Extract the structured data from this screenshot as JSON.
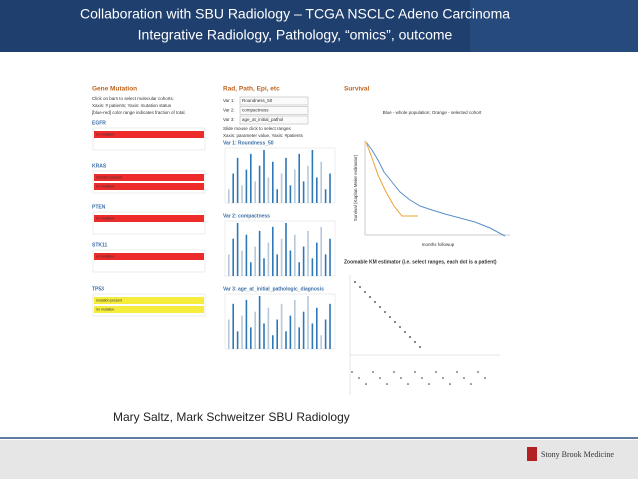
{
  "header": {
    "title_line1": "Collaboration with SBU Radiology – TCGA NSCLC Adeno Carcinoma",
    "title_line2": "Integrative Radiology, Pathology, “omics”, outcome"
  },
  "gene_panel": {
    "title": "Gene Mutation",
    "instructions": [
      "Click on bars to select molecular cohorts.",
      "Xaxis: # patients; Yaxis: mutation status",
      "[blue-red] color range indicates fraction of total."
    ],
    "genes": [
      {
        "name": "EGFR",
        "bars": [
          "no mutation"
        ]
      },
      {
        "name": "KRAS",
        "bars": [
          "mutation present",
          "no mutation"
        ]
      },
      {
        "name": "PTEN",
        "bars": [
          "no mutation"
        ]
      },
      {
        "name": "STK11",
        "bars": [
          "no mutation"
        ]
      },
      {
        "name": "TP53",
        "bars": [
          "mutation present",
          "no mutation"
        ]
      }
    ]
  },
  "rad_panel": {
    "title": "Rad, Path, Epi, etc",
    "vars": [
      {
        "label": "Var 1:",
        "value": "Roundness_50"
      },
      {
        "label": "Var 2:",
        "value": "compactness"
      },
      {
        "label": "Var 3:",
        "value": "age_at_initial_pathol"
      }
    ],
    "instructions": [
      "Slide mouse click to select ranges",
      "Xaxis: parameter value, Yaxis: #patients"
    ],
    "plots": [
      "Var 1: Roundness_50",
      "Var 2: compactness",
      "Var 3: age_at_initial_pathologic_diagnosis"
    ]
  },
  "survival": {
    "title": "Survival",
    "legend": "Blue - whole population; Orange - selected cohort",
    "x_label": "months followup",
    "y_label": "Survival (Kaplan Meier estimator)"
  },
  "zoom": {
    "title": "Zoomable KM estimator (i.e. select ranges, each dot is a patient)"
  },
  "caption": "Mary Saltz, Mark Schweitzer SBU Radiology",
  "footer": {
    "logo": "Stony Brook Medicine"
  }
}
